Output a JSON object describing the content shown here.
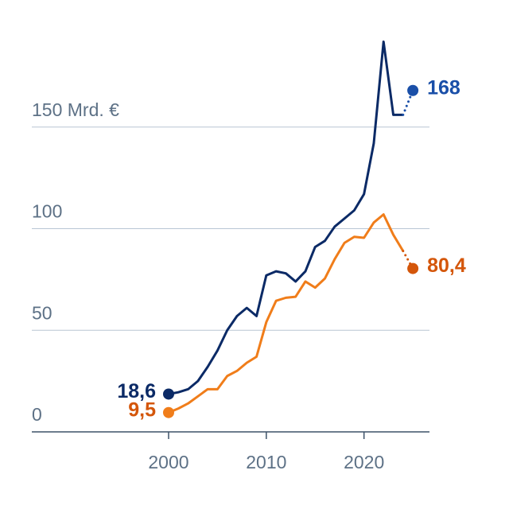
{
  "chart_data": {
    "type": "line",
    "x": [
      2000,
      2001,
      2002,
      2003,
      2004,
      2005,
      2006,
      2007,
      2008,
      2009,
      2010,
      2011,
      2012,
      2013,
      2014,
      2015,
      2016,
      2017,
      2018,
      2019,
      2020,
      2021,
      2022,
      2023,
      2024,
      2025
    ],
    "series": [
      {
        "color": "#0b2a66",
        "highlight_color": "#1a4fa8",
        "values": [
          18.6,
          19.5,
          21,
          25,
          32,
          40,
          50,
          57,
          61,
          57,
          77,
          79,
          78,
          74,
          79,
          91,
          94,
          101,
          105,
          109,
          117,
          142,
          192,
          156,
          156,
          168
        ],
        "value_labels": [
          "18,6",
          null,
          null,
          null,
          null,
          null,
          null,
          null,
          null,
          null,
          null,
          null,
          null,
          null,
          null,
          null,
          null,
          null,
          null,
          null,
          null,
          null,
          null,
          null,
          null,
          "168"
        ]
      },
      {
        "color": "#f07d1a",
        "highlight_color": "#d4560a",
        "values": [
          9.5,
          11.5,
          14,
          17.5,
          21,
          21,
          27.5,
          30,
          34,
          37,
          54,
          64.5,
          66,
          66.5,
          74,
          71,
          75.5,
          85,
          93,
          96,
          95.5,
          103,
          107,
          97,
          89,
          80.4
        ],
        "value_labels": [
          "9,5",
          null,
          null,
          null,
          null,
          null,
          null,
          null,
          null,
          null,
          null,
          null,
          null,
          null,
          null,
          null,
          null,
          null,
          null,
          null,
          null,
          null,
          null,
          null,
          null,
          "80,4"
        ]
      }
    ],
    "xlim": [
      1986,
      2026.7
    ],
    "ylim": [
      0,
      200
    ],
    "xticks": [
      2000,
      2010,
      2020
    ],
    "yticks": [
      0,
      50,
      100,
      {
        "value": 150,
        "label": "150 Mrd. €"
      }
    ],
    "grid": true,
    "dotted_last_segment": true
  }
}
